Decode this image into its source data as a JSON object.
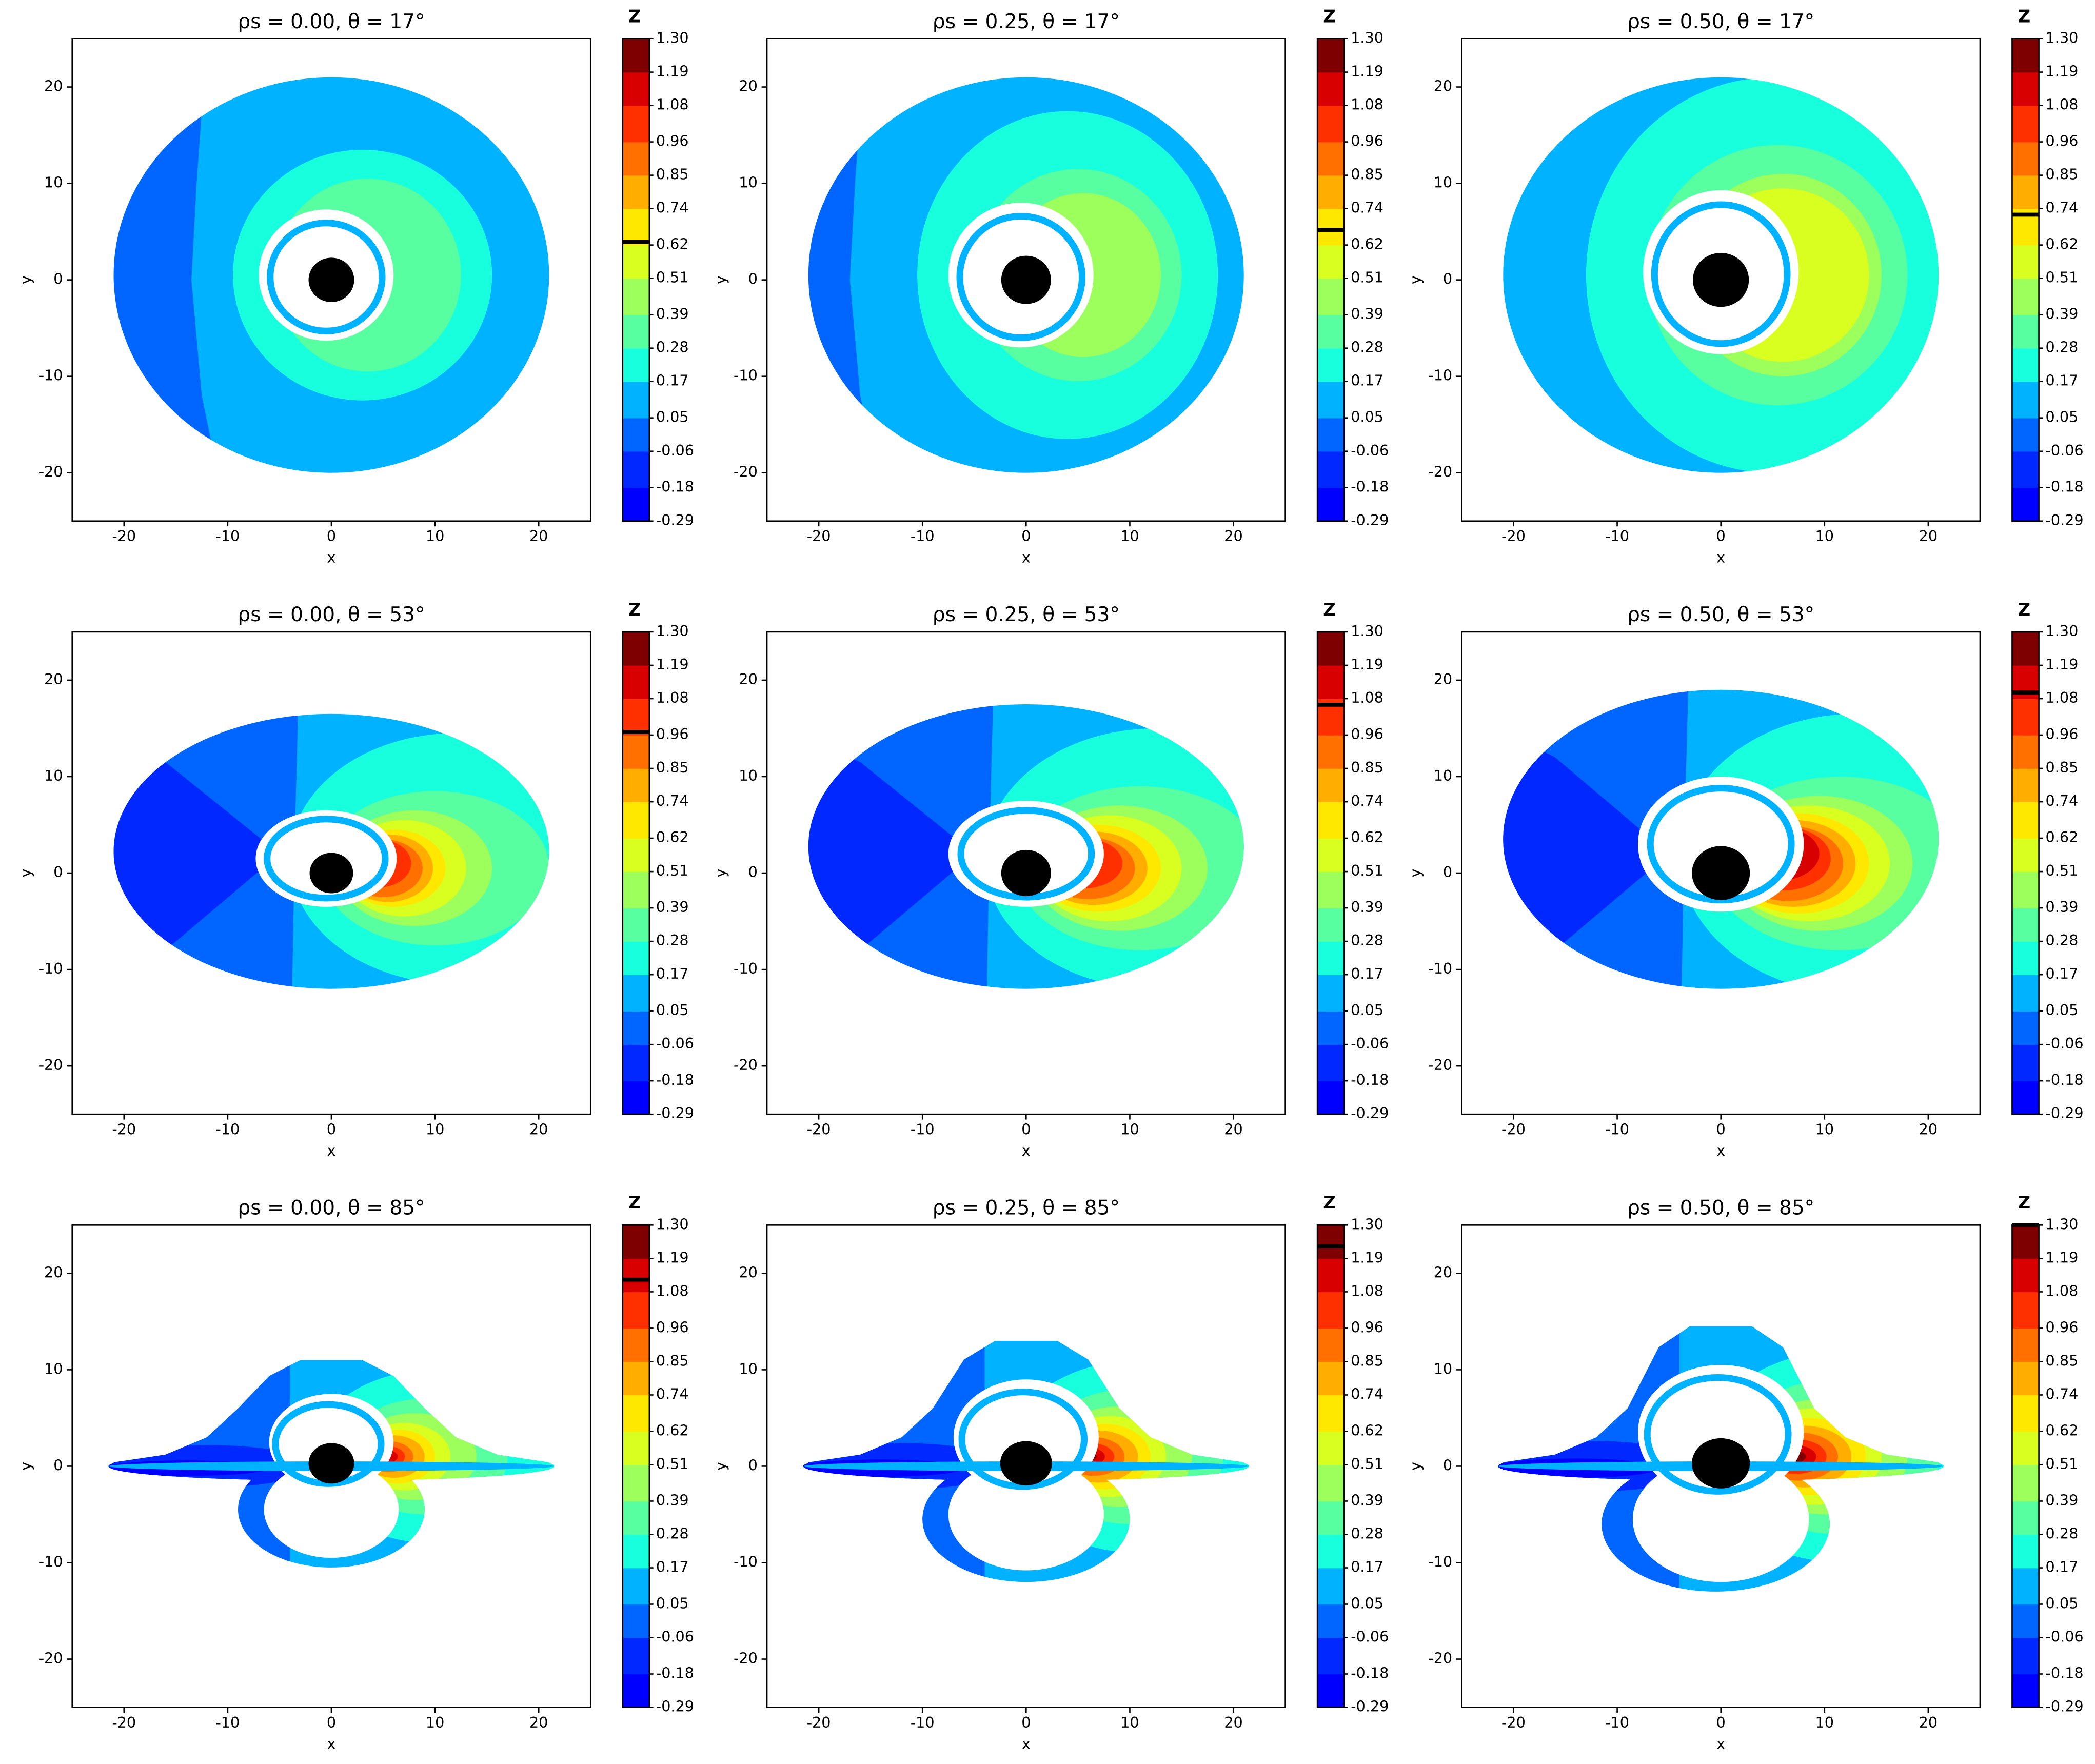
{
  "chart_data": [
    {
      "type": "contour",
      "title": "ρs = 0.00,  θ = 17°",
      "xlabel": "x",
      "ylabel": "y",
      "xlim": [
        -25,
        25
      ],
      "ylim": [
        -25,
        25
      ],
      "xticks": [
        -20,
        -10,
        0,
        10,
        20
      ],
      "yticks": [
        -20,
        -10,
        0,
        10,
        20
      ],
      "colorbar": {
        "label": "Z",
        "ticks": [
          -0.29,
          -0.18,
          -0.06,
          0.05,
          0.17,
          0.28,
          0.39,
          0.51,
          0.62,
          0.74,
          0.85,
          0.96,
          1.08,
          1.19,
          {
            "value": 1.3,
            "label": "1.30"
          }
        ],
        "colors": [
          "#0000ff",
          "#0028ff",
          "#0066ff",
          "#00b2ff",
          "#18ffde",
          "#58ffa0",
          "#9cff5c",
          "#d8ff20",
          "#ffe800",
          "#ffae00",
          "#ff7000",
          "#ff3000",
          "#d80000",
          "#7f0000"
        ],
        "marker": 0.63
      }
    },
    {
      "type": "contour",
      "title": "ρs = 0.25,  θ = 17°",
      "xlabel": "x",
      "ylabel": "y",
      "xlim": [
        -25,
        25
      ],
      "ylim": [
        -25,
        25
      ],
      "xticks": [
        -20,
        -10,
        0,
        10,
        20
      ],
      "yticks": [
        -20,
        -10,
        0,
        10,
        20
      ],
      "colorbar": {
        "label": "Z",
        "ticks": [
          -0.29,
          -0.18,
          -0.06,
          0.05,
          0.17,
          0.28,
          0.39,
          0.51,
          0.62,
          0.74,
          0.85,
          0.96,
          1.08,
          1.19,
          {
            "value": 1.3,
            "label": "1.30"
          }
        ],
        "colors": [
          "#0000ff",
          "#0028ff",
          "#0066ff",
          "#00b2ff",
          "#18ffde",
          "#58ffa0",
          "#9cff5c",
          "#d8ff20",
          "#ffe800",
          "#ffae00",
          "#ff7000",
          "#ff3000",
          "#d80000",
          "#7f0000"
        ],
        "marker": 0.67
      }
    },
    {
      "type": "contour",
      "title": "ρs = 0.50,  θ = 17°",
      "xlabel": "x",
      "ylabel": "y",
      "xlim": [
        -25,
        25
      ],
      "ylim": [
        -25,
        25
      ],
      "xticks": [
        -20,
        -10,
        0,
        10,
        20
      ],
      "yticks": [
        -20,
        -10,
        0,
        10,
        20
      ],
      "colorbar": {
        "label": "Z",
        "ticks": [
          -0.29,
          -0.18,
          -0.06,
          0.05,
          0.17,
          0.28,
          0.39,
          0.51,
          0.62,
          0.74,
          0.85,
          0.96,
          1.08,
          1.19,
          {
            "value": 1.3,
            "label": "1.30"
          }
        ],
        "colors": [
          "#0000ff",
          "#0028ff",
          "#0066ff",
          "#00b2ff",
          "#18ffde",
          "#58ffa0",
          "#9cff5c",
          "#d8ff20",
          "#ffe800",
          "#ffae00",
          "#ff7000",
          "#ff3000",
          "#d80000",
          "#7f0000"
        ],
        "marker": 0.72
      }
    },
    {
      "type": "contour",
      "title": "ρs = 0.00,  θ = 53°",
      "xlabel": "x",
      "ylabel": "y",
      "xlim": [
        -25,
        25
      ],
      "ylim": [
        -25,
        25
      ],
      "xticks": [
        -20,
        -10,
        0,
        10,
        20
      ],
      "yticks": [
        -20,
        -10,
        0,
        10,
        20
      ],
      "colorbar": {
        "label": "Z",
        "ticks": [
          -0.29,
          -0.18,
          -0.06,
          0.05,
          0.17,
          0.28,
          0.39,
          0.51,
          0.62,
          0.74,
          0.85,
          0.96,
          1.08,
          1.19,
          {
            "value": 1.3,
            "label": "1.30"
          }
        ],
        "colors": [
          "#0000ff",
          "#0028ff",
          "#0066ff",
          "#00b2ff",
          "#18ffde",
          "#58ffa0",
          "#9cff5c",
          "#d8ff20",
          "#ffe800",
          "#ffae00",
          "#ff7000",
          "#ff3000",
          "#d80000",
          "#7f0000"
        ],
        "marker": 0.97
      }
    },
    {
      "type": "contour",
      "title": "ρs = 0.25,  θ = 53°",
      "xlabel": "x",
      "ylabel": "y",
      "xlim": [
        -25,
        25
      ],
      "ylim": [
        -25,
        25
      ],
      "xticks": [
        -20,
        -10,
        0,
        10,
        20
      ],
      "yticks": [
        -20,
        -10,
        0,
        10,
        20
      ],
      "colorbar": {
        "label": "Z",
        "ticks": [
          -0.29,
          -0.18,
          -0.06,
          0.05,
          0.17,
          0.28,
          0.39,
          0.51,
          0.62,
          0.74,
          0.85,
          0.96,
          1.08,
          1.19,
          {
            "value": 1.3,
            "label": "1.30"
          }
        ],
        "colors": [
          "#0000ff",
          "#0028ff",
          "#0066ff",
          "#00b2ff",
          "#18ffde",
          "#58ffa0",
          "#9cff5c",
          "#d8ff20",
          "#ffe800",
          "#ffae00",
          "#ff7000",
          "#ff3000",
          "#d80000",
          "#7f0000"
        ],
        "marker": 1.06
      }
    },
    {
      "type": "contour",
      "title": "ρs = 0.50,  θ = 53°",
      "xlabel": "x",
      "ylabel": "y",
      "xlim": [
        -25,
        25
      ],
      "ylim": [
        -25,
        25
      ],
      "xticks": [
        -20,
        -10,
        0,
        10,
        20
      ],
      "yticks": [
        -20,
        -10,
        0,
        10,
        20
      ],
      "colorbar": {
        "label": "Z",
        "ticks": [
          -0.29,
          -0.18,
          -0.06,
          0.05,
          0.17,
          0.28,
          0.39,
          0.51,
          0.62,
          0.74,
          0.85,
          0.96,
          1.08,
          1.19,
          {
            "value": 1.3,
            "label": "1.30"
          }
        ],
        "colors": [
          "#0000ff",
          "#0028ff",
          "#0066ff",
          "#00b2ff",
          "#18ffde",
          "#58ffa0",
          "#9cff5c",
          "#d8ff20",
          "#ffe800",
          "#ffae00",
          "#ff7000",
          "#ff3000",
          "#d80000",
          "#7f0000"
        ],
        "marker": 1.1
      }
    },
    {
      "type": "contour",
      "title": "ρs = 0.00,  θ = 85°",
      "xlabel": "x",
      "ylabel": "y",
      "xlim": [
        -25,
        25
      ],
      "ylim": [
        -25,
        25
      ],
      "xticks": [
        -20,
        -10,
        0,
        10,
        20
      ],
      "yticks": [
        -20,
        -10,
        0,
        10,
        20
      ],
      "colorbar": {
        "label": "Z",
        "ticks": [
          -0.29,
          -0.18,
          -0.06,
          0.05,
          0.17,
          0.28,
          0.39,
          0.51,
          0.62,
          0.74,
          0.85,
          0.96,
          1.08,
          1.19,
          {
            "value": 1.3,
            "label": "1.30"
          }
        ],
        "colors": [
          "#0000ff",
          "#0028ff",
          "#0066ff",
          "#00b2ff",
          "#18ffde",
          "#58ffa0",
          "#9cff5c",
          "#d8ff20",
          "#ffe800",
          "#ffae00",
          "#ff7000",
          "#ff3000",
          "#d80000",
          "#7f0000"
        ],
        "marker": 1.12
      }
    },
    {
      "type": "contour",
      "title": "ρs = 0.25,  θ = 85°",
      "xlabel": "x",
      "ylabel": "y",
      "xlim": [
        -25,
        25
      ],
      "ylim": [
        -25,
        25
      ],
      "xticks": [
        -20,
        -10,
        0,
        10,
        20
      ],
      "yticks": [
        -20,
        -10,
        0,
        10,
        20
      ],
      "colorbar": {
        "label": "Z",
        "ticks": [
          -0.29,
          -0.18,
          -0.06,
          0.05,
          0.17,
          0.28,
          0.39,
          0.51,
          0.62,
          0.74,
          0.85,
          0.96,
          1.08,
          1.19,
          {
            "value": 1.3,
            "label": "1.30"
          }
        ],
        "colors": [
          "#0000ff",
          "#0028ff",
          "#0066ff",
          "#00b2ff",
          "#18ffde",
          "#58ffa0",
          "#9cff5c",
          "#d8ff20",
          "#ffe800",
          "#ffae00",
          "#ff7000",
          "#ff3000",
          "#d80000",
          "#7f0000"
        ],
        "marker": 1.23
      }
    },
    {
      "type": "contour",
      "title": "ρs = 0.50,  θ = 85°",
      "xlabel": "x",
      "ylabel": "y",
      "xlim": [
        -25,
        25
      ],
      "ylim": [
        -25,
        25
      ],
      "xticks": [
        -20,
        -10,
        0,
        10,
        20
      ],
      "yticks": [
        -20,
        -10,
        0,
        10,
        20
      ],
      "colorbar": {
        "label": "Z",
        "ticks": [
          -0.29,
          -0.18,
          -0.06,
          0.05,
          0.17,
          0.28,
          0.39,
          0.51,
          0.62,
          0.74,
          0.85,
          0.96,
          1.08,
          1.19,
          {
            "value": 1.3,
            "label": "1.30"
          }
        ],
        "colors": [
          "#0000ff",
          "#0028ff",
          "#0066ff",
          "#00b2ff",
          "#18ffde",
          "#58ffa0",
          "#9cff5c",
          "#d8ff20",
          "#ffe800",
          "#ffae00",
          "#ff7000",
          "#ff3000",
          "#d80000",
          "#7f0000"
        ],
        "marker": 1.3
      }
    }
  ]
}
